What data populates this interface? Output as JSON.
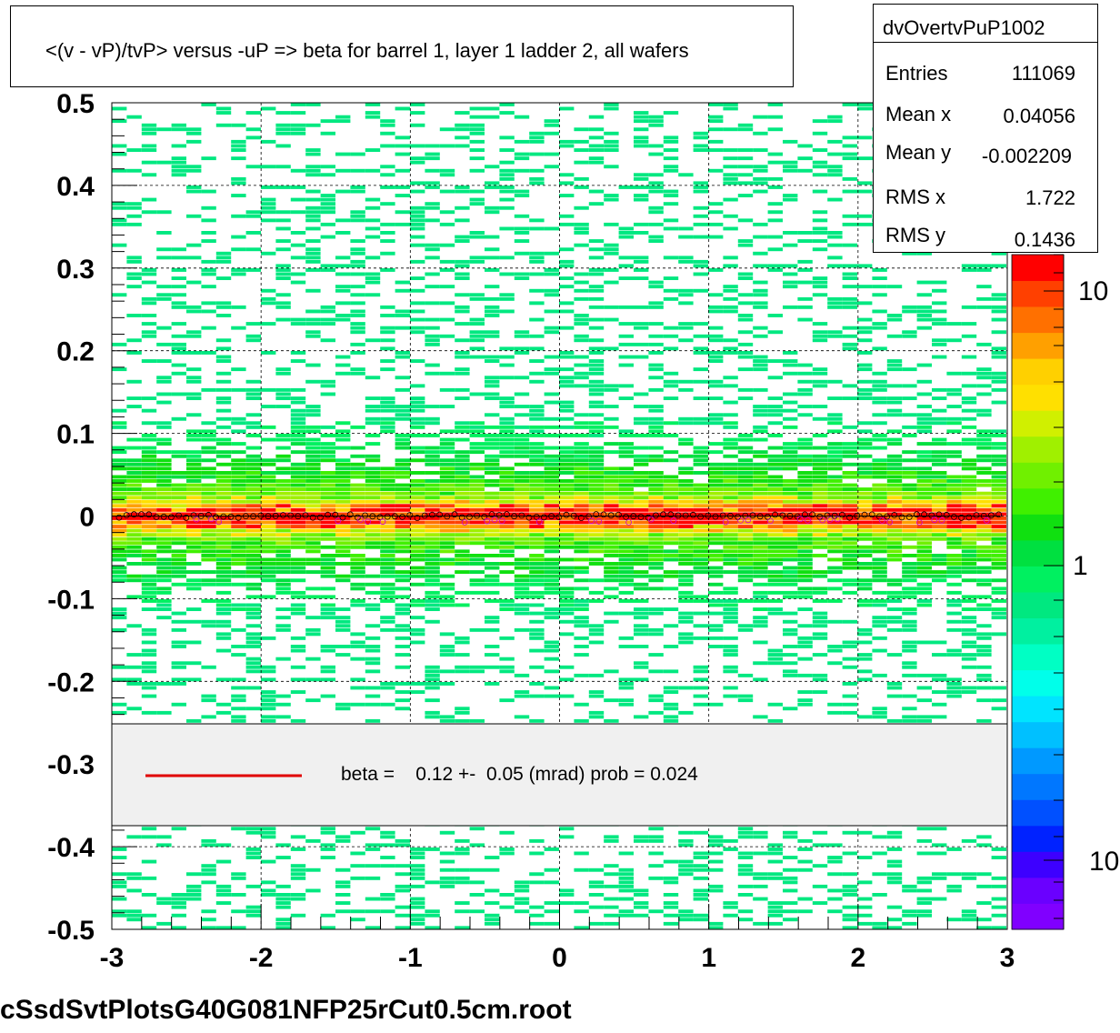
{
  "title": "<(v - vP)/tvP> versus  -uP => beta for barrel 1, layer 1 ladder 2, all wafers",
  "stats": {
    "name": "dvOvertvPuP1002",
    "rows": [
      {
        "label": "Entries",
        "value": "111069"
      },
      {
        "label": "Mean x",
        "value": "0.04056"
      },
      {
        "label": "Mean y",
        "value": "-0.002209"
      },
      {
        "label": "RMS x",
        "value": "1.722"
      },
      {
        "label": "RMS y",
        "value": "0.1436"
      }
    ]
  },
  "legend": {
    "text": "beta =    0.12 +-  0.05 (mrad) prob = 0.024",
    "line_color": "#e00000"
  },
  "footer": "cSsdSvtPlotsG40G081NFP25rCut0.5cm.root",
  "colors": {
    "palette": [
      "#8000ff",
      "#6a00ff",
      "#3d00ff",
      "#0022ff",
      "#0050ff",
      "#0077ff",
      "#0099ff",
      "#00c0ff",
      "#00e4ff",
      "#00ffea",
      "#00ffc4",
      "#00f0a0",
      "#00e880",
      "#00f060",
      "#00e040",
      "#10e010",
      "#40f000",
      "#70f000",
      "#a0f000",
      "#d0f000",
      "#ffe000",
      "#ffd000",
      "#ffa000",
      "#ff7000",
      "#ff4000",
      "#ff0000"
    ],
    "band_core": "#ff2000"
  },
  "chart_data": {
    "type": "heatmap",
    "title": "<(v - vP)/tvP> versus  -uP => beta for barrel 1, layer 1 ladder 2, all wafers",
    "xlabel": "",
    "ylabel": "",
    "xlim": [
      -3,
      3
    ],
    "ylim": [
      -0.5,
      0.5
    ],
    "x_ticks": [
      "-3",
      "-2",
      "-1",
      "0",
      "1",
      "2",
      "3"
    ],
    "y_ticks": [
      "-0.5",
      "-0.4",
      "-0.3",
      "-0.2",
      "-0.1",
      "0",
      "0.1",
      "0.2",
      "0.3",
      "0.4",
      "0.5"
    ],
    "z_scale": "log",
    "z_ticks": [
      "10",
      "1",
      "10"
    ],
    "grid": true,
    "profile_mean_y": 0.0,
    "fit": {
      "beta_mrad": 0.12,
      "error_mrad": 0.05,
      "prob": 0.024
    }
  }
}
